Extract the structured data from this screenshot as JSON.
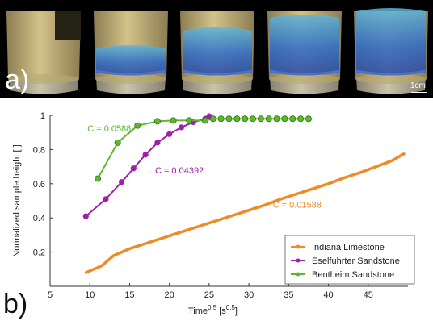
{
  "panel_a": {
    "label": "a)",
    "scale_bar_label": "1cm",
    "num_samples": 5
  },
  "panel_b": {
    "label": "b)"
  },
  "colors": {
    "indiana": "#f08a24",
    "eselfuhrter": "#a020a8",
    "bentheim": "#5cb82e",
    "stone": "#c9b57a",
    "fluid": "#2a5fc8"
  },
  "chart_data": {
    "type": "line",
    "xlabel": "Time",
    "xlabel_sup1": "0.5",
    "xlabel_units_open": " [s",
    "xlabel_sup2": "0.5",
    "xlabel_units_close": "]",
    "ylabel": "Normalized sample height [ ]",
    "xlim": [
      5,
      50
    ],
    "ylim": [
      0,
      1
    ],
    "xticks": [
      5,
      10,
      15,
      20,
      25,
      30,
      35,
      40,
      45
    ],
    "yticks": [
      0.2,
      0.4,
      0.6,
      0.8,
      1
    ],
    "ytick_labels": [
      "0.2",
      "0.4",
      "0.6",
      "0.8",
      "1"
    ],
    "legend_position": "bottom-right",
    "series": [
      {
        "name": "Indiana Limestone",
        "color": "#f08a24",
        "annotation": "C = 0.01588",
        "annotation_at": [
          33,
          0.46
        ],
        "dense": true,
        "x": [
          9.5,
          10.5,
          11.5,
          12.0,
          12.5,
          13.0,
          14.0,
          15.0,
          16.0,
          17.0,
          18.0,
          19.0,
          20.0,
          22.0,
          24.0,
          26.0,
          28.0,
          30.0,
          32.0,
          34.0,
          36.0,
          38.0,
          40.0,
          42.0,
          44.0,
          46.0,
          48.0,
          49.5
        ],
        "y": [
          0.08,
          0.1,
          0.12,
          0.14,
          0.16,
          0.18,
          0.2,
          0.22,
          0.235,
          0.25,
          0.265,
          0.28,
          0.295,
          0.325,
          0.355,
          0.385,
          0.415,
          0.445,
          0.475,
          0.51,
          0.54,
          0.57,
          0.6,
          0.635,
          0.665,
          0.7,
          0.735,
          0.775
        ]
      },
      {
        "name": "Eselfuhrter Sandstone",
        "color": "#a020a8",
        "annotation": "C = 0.04392",
        "annotation_at": [
          18.2,
          0.66
        ],
        "dense": false,
        "x": [
          9.5,
          12.0,
          14.0,
          15.5,
          17.0,
          18.5,
          20.0,
          21.5,
          23.0,
          24.5,
          25.0
        ],
        "y": [
          0.41,
          0.51,
          0.61,
          0.69,
          0.77,
          0.84,
          0.89,
          0.93,
          0.96,
          0.98,
          0.995
        ]
      },
      {
        "name": "Bentheim Sandstone",
        "color": "#5cb82e",
        "annotation": "C = 0.0588",
        "annotation_at": [
          9.7,
          0.905
        ],
        "dense": false,
        "x": [
          11.0,
          13.5,
          16.0,
          18.5,
          20.5,
          22.5,
          24.5,
          25.5,
          26.5,
          27.5,
          28.5,
          29.5,
          30.5,
          31.5,
          32.5,
          33.5,
          34.5,
          35.5,
          36.5,
          37.5
        ],
        "y": [
          0.63,
          0.84,
          0.94,
          0.965,
          0.97,
          0.97,
          0.97,
          0.98,
          0.98,
          0.98,
          0.98,
          0.98,
          0.98,
          0.98,
          0.98,
          0.98,
          0.98,
          0.98,
          0.98,
          0.98
        ]
      }
    ]
  }
}
